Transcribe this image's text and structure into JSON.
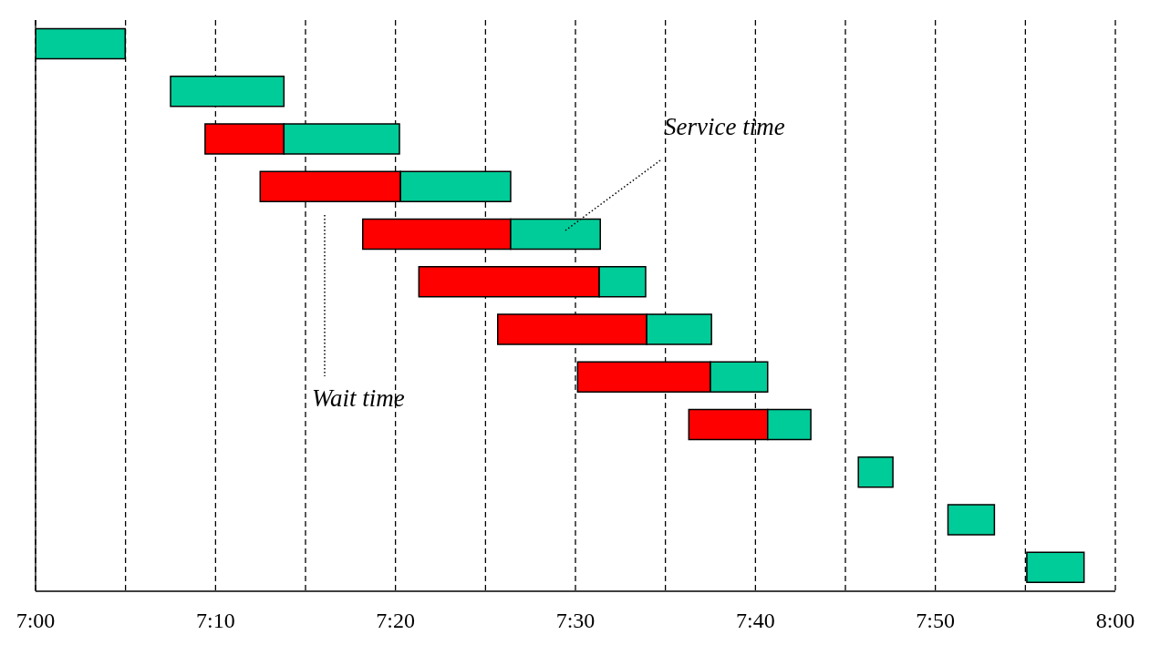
{
  "chart_data": {
    "type": "bar",
    "orientation": "horizontal",
    "categories": [
      null,
      null,
      null,
      null,
      null,
      null,
      null,
      null,
      null,
      null,
      null,
      null
    ],
    "series": [
      {
        "color": "#ff0000",
        "base": [
          null,
          null,
          7.157,
          7.208,
          7.303,
          7.355,
          7.428,
          7.502,
          7.605,
          null,
          null,
          null
        ],
        "values": [
          null,
          null,
          0.073,
          0.13,
          0.137,
          0.167,
          0.138,
          0.123,
          0.073,
          null,
          null,
          null
        ]
      },
      {
        "color": "#00cc99",
        "base": [
          7.0,
          7.125,
          7.23,
          7.338,
          7.44,
          7.522,
          7.566,
          7.625,
          7.678,
          7.762,
          7.845,
          7.918
        ],
        "values": [
          0.083,
          0.105,
          0.107,
          0.102,
          0.083,
          0.043,
          0.06,
          0.053,
          0.04,
          0.032,
          0.043,
          0.053
        ]
      }
    ],
    "xlim": [
      7,
      8
    ],
    "xticks": [
      {
        "value": 7,
        "label": "7:00"
      },
      {
        "value": 7.0833,
        "label": null
      },
      {
        "value": 7.1667,
        "label": "7:10"
      },
      {
        "value": 7.25,
        "label": null
      },
      {
        "value": 7.3333,
        "label": "7:20"
      },
      {
        "value": 7.4167,
        "label": null
      },
      {
        "value": 7.5,
        "label": "7:30"
      },
      {
        "value": 7.5833,
        "label": null
      },
      {
        "value": 7.6667,
        "label": "7:40"
      },
      {
        "value": 7.75,
        "label": null
      },
      {
        "value": 7.8333,
        "label": "7:50"
      },
      {
        "value": 7.9167,
        "label": null
      },
      {
        "value": 8,
        "label": "8:00"
      }
    ],
    "grid": "x",
    "annotations": [
      "Service time",
      "Wait time"
    ]
  }
}
